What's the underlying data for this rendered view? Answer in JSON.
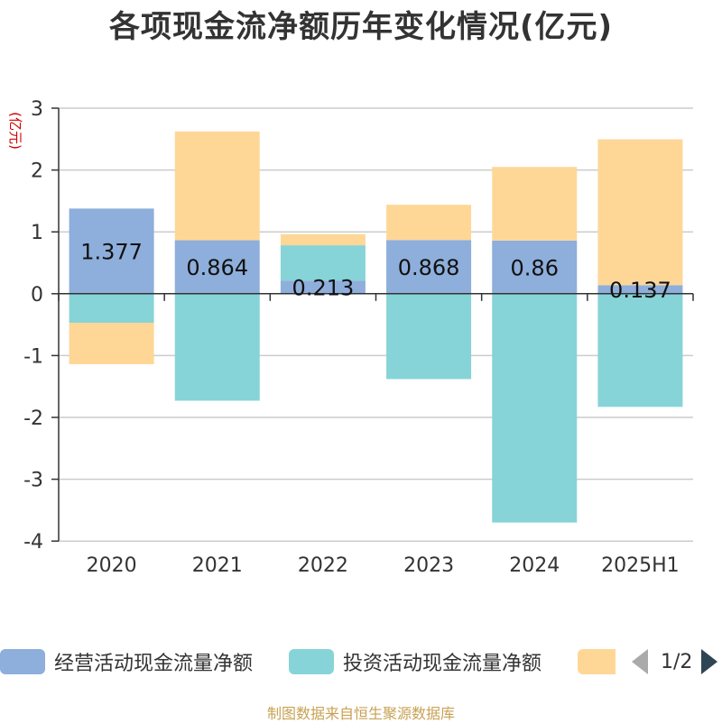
{
  "title": "各项现金流净额历年变化情况(亿元)",
  "footer": "制图数据来自恒生聚源数据库",
  "colors": {
    "operating": "#8eaedb",
    "investing": "#86d4d7",
    "financing": "#fed797",
    "axis": "#333333",
    "grid": "#cccccc",
    "yunit": "#cc0000"
  },
  "legend": {
    "items": [
      {
        "label": "经营活动现金流量净额",
        "color": "#8eaedb"
      },
      {
        "label": "投资活动现金流量净额",
        "color": "#86d4d7"
      },
      {
        "label": "",
        "color": "#fed797"
      }
    ],
    "page": "1/2"
  },
  "chart_data": {
    "type": "bar",
    "stacked": true,
    "y_unit": "(亿元)",
    "categories": [
      "2020",
      "2021",
      "2022",
      "2023",
      "2024",
      "2025H1"
    ],
    "series": [
      {
        "name": "经营活动现金流量净额",
        "values": [
          1.377,
          0.864,
          0.213,
          0.868,
          0.86,
          0.137
        ],
        "labels": [
          "1.377",
          "0.864",
          "0.213",
          "0.868",
          "0.86",
          "0.137"
        ]
      },
      {
        "name": "投资活动现金流量净额",
        "values": [
          -0.47,
          -1.73,
          0.57,
          -1.38,
          -3.7,
          -1.83
        ]
      },
      {
        "values": [
          -0.67,
          1.76,
          0.18,
          0.57,
          1.19,
          2.36
        ]
      }
    ],
    "ylim": [
      -4,
      3
    ],
    "yticks": [
      3,
      2,
      1,
      0,
      -1,
      -2,
      -3,
      -4
    ],
    "grid": true,
    "legend_position": "bottom"
  }
}
